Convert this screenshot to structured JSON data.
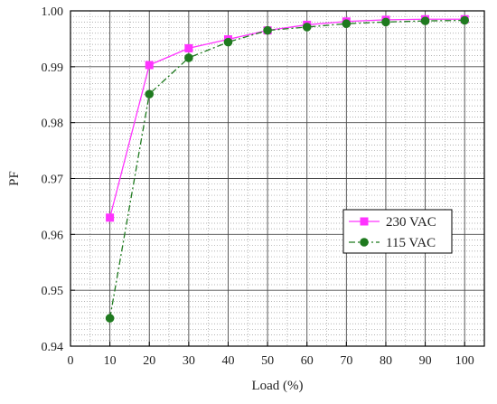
{
  "chart_data": {
    "type": "line",
    "xlabel": "Load (%)",
    "ylabel": "PF",
    "xlim": [
      0,
      105
    ],
    "ylim": [
      0.94,
      1.0
    ],
    "x_ticks": [
      0,
      10,
      20,
      30,
      40,
      50,
      60,
      70,
      80,
      90,
      100
    ],
    "y_ticks": [
      0.94,
      0.95,
      0.96,
      0.97,
      0.98,
      0.99,
      1.0
    ],
    "y_tick_labels": [
      "0.94",
      "0.95",
      "0.96",
      "0.97",
      "0.98",
      "0.99",
      "1.00"
    ],
    "grid": true,
    "legend_position": "right, lower-middle",
    "series": [
      {
        "name": "230 VAC",
        "color": "#ff33ff",
        "marker": "square",
        "line_style": "solid",
        "x": [
          10,
          20,
          30,
          40,
          50,
          60,
          70,
          80,
          90,
          100
        ],
        "values": [
          0.963,
          0.9903,
          0.9933,
          0.9949,
          0.9965,
          0.9975,
          0.9981,
          0.9984,
          0.9985,
          0.9985
        ]
      },
      {
        "name": "115 VAC",
        "color": "#1f7a1f",
        "marker": "circle",
        "line_style": "dashdot",
        "x": [
          10,
          20,
          30,
          40,
          50,
          60,
          70,
          80,
          90,
          100
        ],
        "values": [
          0.945,
          0.9851,
          0.9916,
          0.9944,
          0.9965,
          0.9971,
          0.9977,
          0.998,
          0.9982,
          0.9983
        ]
      }
    ]
  }
}
